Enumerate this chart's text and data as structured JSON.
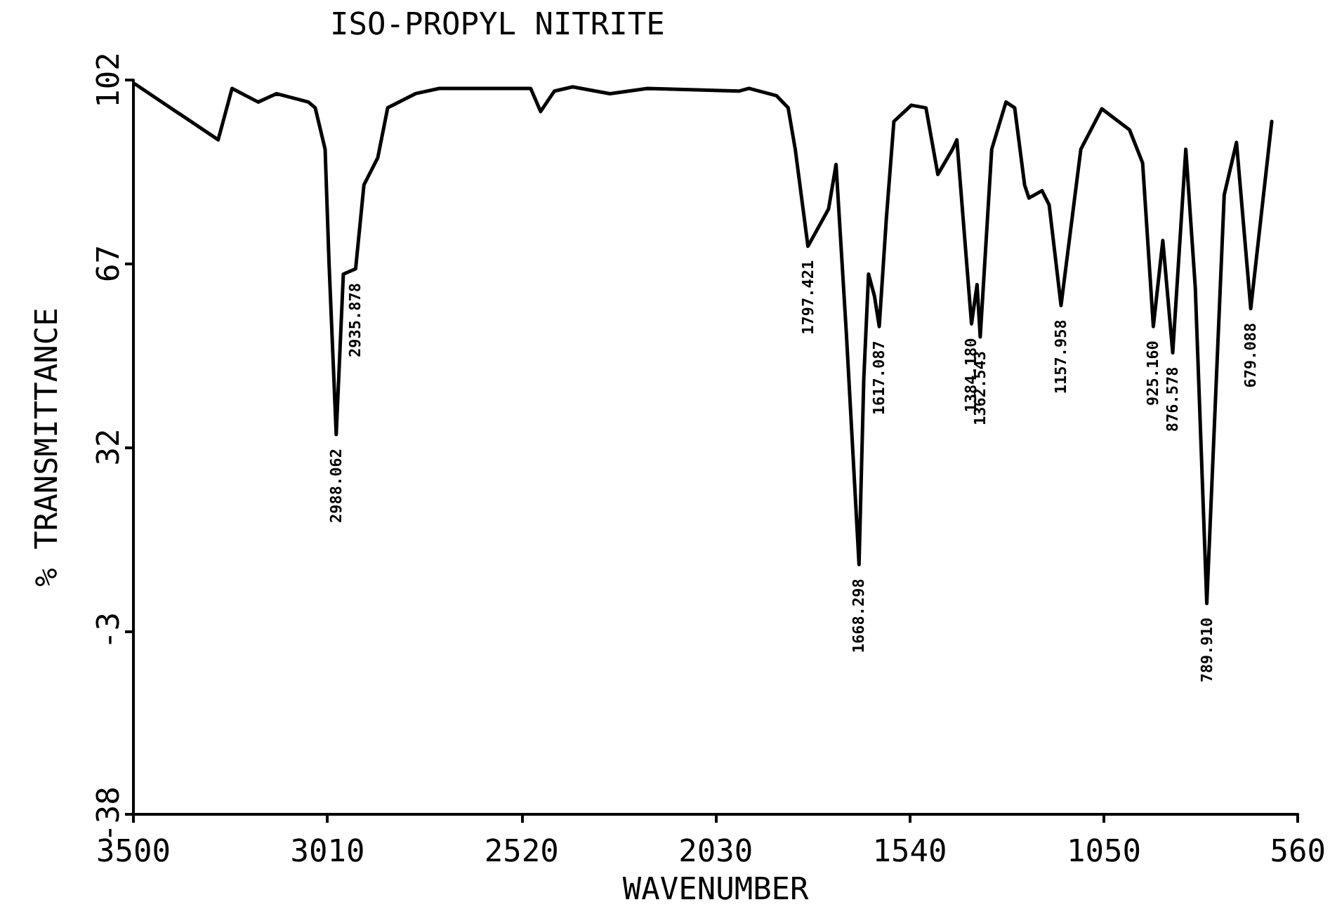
{
  "chart_data": {
    "type": "line",
    "title": "ISO-PROPYL NITRITE",
    "xlabel": "WAVENUMBER",
    "ylabel": "% TRANSMITTANCE",
    "x": [
      3495,
      3286,
      3251,
      3185,
      3139,
      3058,
      3041,
      3016,
      3006,
      2988,
      2970,
      2939,
      2918,
      2883,
      2858,
      2788,
      2728,
      2497,
      2472,
      2437,
      2391,
      2297,
      2202,
      1970,
      1946,
      1876,
      1847,
      1829,
      1797,
      1745,
      1726,
      1700,
      1668,
      1656,
      1644,
      1629,
      1617,
      1599,
      1580,
      1536,
      1499,
      1469,
      1432,
      1421,
      1384,
      1370,
      1362,
      1333,
      1297,
      1275,
      1250,
      1239,
      1206,
      1188,
      1158,
      1108,
      1055,
      985,
      952,
      925,
      901,
      876,
      843,
      819,
      790,
      746,
      715,
      679,
      626
    ],
    "values": [
      101.2,
      90.6,
      100.4,
      97.8,
      99.4,
      97.8,
      96.7,
      88.8,
      66.9,
      34.4,
      65,
      66,
      82,
      87.2,
      96.7,
      99.4,
      100.4,
      100.4,
      96,
      99.9,
      100.7,
      99.4,
      100.4,
      99.9,
      100.4,
      99,
      96.7,
      88.8,
      70.3,
      77.4,
      85.9,
      53.7,
      9.6,
      45,
      65,
      60.8,
      55,
      75.6,
      94.1,
      97.2,
      96.7,
      84,
      88.8,
      90.6,
      55.5,
      63,
      53,
      88.8,
      97.8,
      96.7,
      82,
      79.5,
      80.9,
      78.2,
      59,
      88.8,
      96.5,
      92.5,
      86.2,
      55,
      71.4,
      50,
      88.8,
      62.4,
      2.2,
      80.1,
      90.1,
      58.4,
      94.1
    ],
    "color": "#000000",
    "marker": "none",
    "line_style": "solid",
    "grid": false,
    "xlim": [
      3500,
      560
    ],
    "xticks": [
      3500,
      3010,
      2520,
      2030,
      1540,
      1050,
      560
    ],
    "ylim": [
      -38,
      102
    ],
    "yticks": [
      -38,
      -3,
      32,
      67,
      102
    ],
    "annotations": [
      {
        "text": "2988.062",
        "x": 2988,
        "y": 34.4
      },
      {
        "text": "2935.878",
        "x": 2939,
        "y": 66
      },
      {
        "text": "1797.421",
        "x": 1797,
        "y": 70.3
      },
      {
        "text": "1668.298",
        "x": 1668,
        "y": 9.6
      },
      {
        "text": "1617.087",
        "x": 1617,
        "y": 55
      },
      {
        "text": "1384.180",
        "x": 1384,
        "y": 55.5
      },
      {
        "text": "1362.543",
        "x": 1362,
        "y": 53
      },
      {
        "text": "1157.958",
        "x": 1158,
        "y": 59
      },
      {
        "text": "925.160",
        "x": 925,
        "y": 55
      },
      {
        "text": "876.578",
        "x": 876,
        "y": 50
      },
      {
        "text": "789.910",
        "x": 790,
        "y": 2.2
      },
      {
        "text": "679.088",
        "x": 679,
        "y": 58.4
      }
    ]
  }
}
